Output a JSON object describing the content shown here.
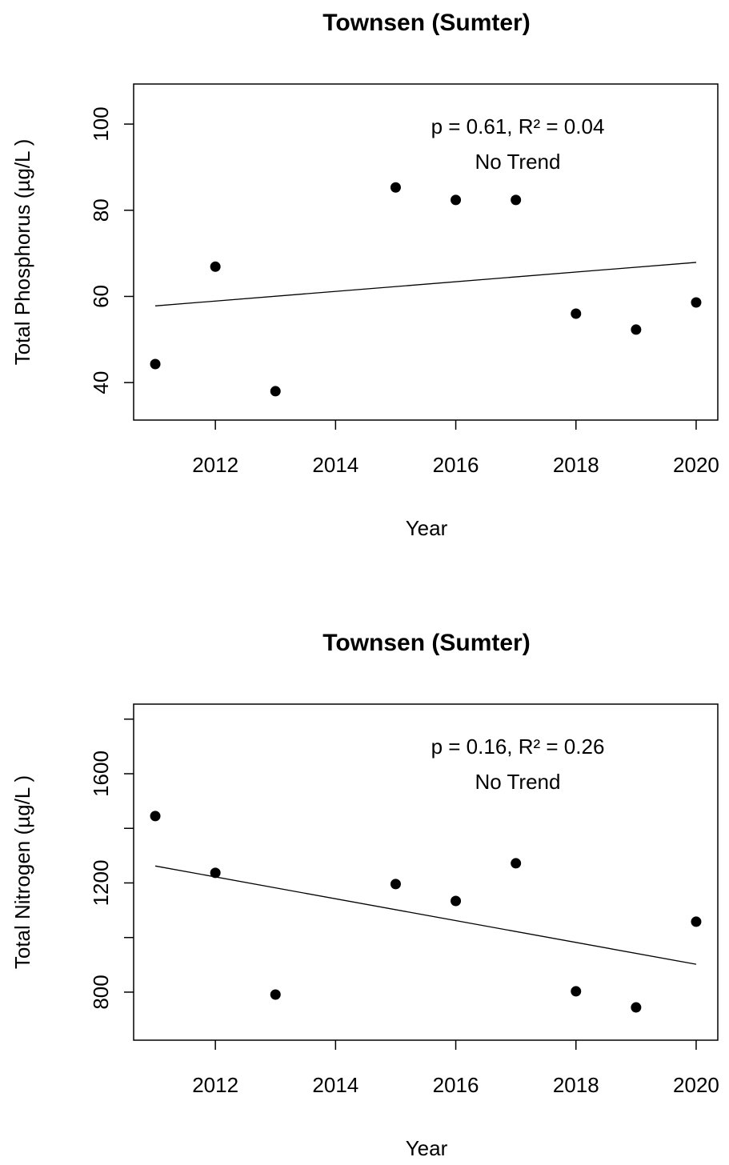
{
  "chart_data": [
    {
      "type": "scatter",
      "title": "Townsen (Sumter)",
      "x_label": "Year",
      "y_label": "Total Phosphorus (µg/L )",
      "annotations": [
        "p = 0.61, R² = 0.04",
        "No Trend"
      ],
      "x": [
        2011,
        2012,
        2013,
        2015,
        2016,
        2017,
        2018,
        2019,
        2020
      ],
      "values": [
        44.3,
        66.9,
        38.0,
        85.3,
        82.4,
        82.4,
        56.0,
        52.3,
        58.6
      ],
      "color": "#000000",
      "trend": {
        "x": [
          2011,
          2020
        ],
        "values": [
          57.8,
          67.9
        ]
      },
      "xlim": [
        2010.64,
        2020.36
      ],
      "xticks": [
        2012,
        2014,
        2016,
        2018,
        2020
      ],
      "ylim": [
        31.3,
        109.3
      ],
      "yticks": [
        40,
        60,
        80,
        100
      ]
    },
    {
      "type": "scatter",
      "title": "Townsen (Sumter)",
      "x_label": "Year",
      "y_label": "Total Nitrogen (µg/L )",
      "annotations": [
        "p = 0.16, R² = 0.26",
        "No Trend"
      ],
      "x": [
        2011,
        2012,
        2013,
        2015,
        2016,
        2017,
        2018,
        2019,
        2020
      ],
      "values": [
        1445,
        1237,
        791,
        1196,
        1134,
        1272,
        803,
        744,
        1058
      ],
      "color": "#000000",
      "trend": {
        "x": [
          2011,
          2020
        ],
        "values": [
          1262,
          902
        ]
      },
      "xlim": [
        2010.64,
        2020.36
      ],
      "xticks": [
        2012,
        2014,
        2016,
        2018,
        2020
      ],
      "ylim": [
        624,
        1855
      ],
      "yticks": [
        800,
        1200,
        1600
      ],
      "yminor_ticks": [
        1000,
        1400,
        1800
      ]
    }
  ]
}
